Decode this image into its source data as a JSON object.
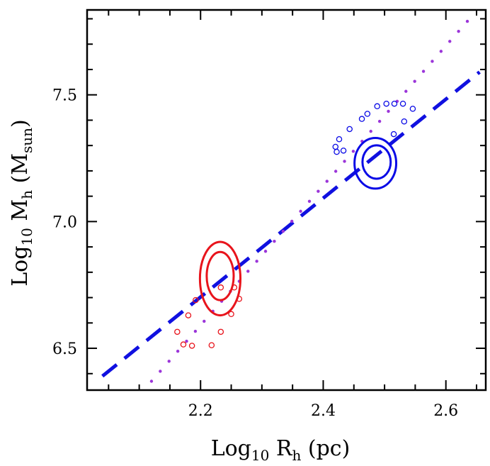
{
  "chart_data": {
    "type": "scatter",
    "title": "",
    "xlabel": {
      "base": "Log",
      "base_sub": "10",
      "symbol": " R",
      "symbol_sub": "h",
      "unit": " (pc)"
    },
    "ylabel": {
      "base": "Log",
      "base_sub": "10",
      "symbol": " M",
      "symbol_sub": "h",
      "unit_open": " (M",
      "unit_sub": "sun",
      "unit_close": ")"
    },
    "xlim": [
      2.015,
      2.665
    ],
    "ylim": [
      6.335,
      7.835
    ],
    "xticks": [
      2.2,
      2.4,
      2.6
    ],
    "xtick_labels": [
      "2.2",
      "2.4",
      "2.6"
    ],
    "yticks": [
      6.5,
      7.0,
      7.5
    ],
    "ytick_labels": [
      "6.5",
      "7.0",
      "7.5"
    ],
    "x_minor_step": 0.05,
    "y_minor_step": 0.1,
    "grid": false,
    "colors": {
      "red": "#e8141c",
      "blue": "#0a0ae6",
      "purple": "#9b35d9"
    },
    "series": [
      {
        "kind": "dashed-line",
        "color": "#1010e0",
        "points": [
          [
            2.04,
            6.39
          ],
          [
            2.655,
            7.59
          ]
        ]
      },
      {
        "kind": "dotted-line",
        "color": "#9b35d9",
        "points": [
          [
            2.12,
            6.37
          ],
          [
            2.635,
            7.79
          ]
        ]
      },
      {
        "kind": "contour",
        "color": "#e8141c",
        "levels": [
          {
            "cx": 2.232,
            "cy": 6.775,
            "rx": 0.033,
            "ry": 0.145
          },
          {
            "cx": 2.232,
            "cy": 6.785,
            "rx": 0.022,
            "ry": 0.095
          }
        ]
      },
      {
        "kind": "contour",
        "color": "#0a0ae6",
        "levels": [
          {
            "cx": 2.485,
            "cy": 7.23,
            "rx": 0.034,
            "ry": 0.1
          },
          {
            "cx": 2.487,
            "cy": 7.235,
            "rx": 0.023,
            "ry": 0.066
          }
        ]
      },
      {
        "kind": "open-circles",
        "color": "#e8141c",
        "points": [
          [
            2.162,
            6.565
          ],
          [
            2.172,
            6.515
          ],
          [
            2.18,
            6.63
          ],
          [
            2.186,
            6.51
          ],
          [
            2.192,
            6.69
          ],
          [
            2.218,
            6.512
          ],
          [
            2.233,
            6.565
          ],
          [
            2.233,
            6.74
          ],
          [
            2.25,
            6.635
          ],
          [
            2.255,
            6.74
          ],
          [
            2.263,
            6.695
          ]
        ]
      },
      {
        "kind": "open-circles",
        "color": "#0a0ae6",
        "points": [
          [
            2.42,
            7.295
          ],
          [
            2.422,
            7.275
          ],
          [
            2.426,
            7.325
          ],
          [
            2.433,
            7.28
          ],
          [
            2.443,
            7.365
          ],
          [
            2.463,
            7.405
          ],
          [
            2.472,
            7.425
          ],
          [
            2.488,
            7.455
          ],
          [
            2.503,
            7.465
          ],
          [
            2.516,
            7.465
          ],
          [
            2.53,
            7.465
          ],
          [
            2.532,
            7.395
          ],
          [
            2.546,
            7.445
          ],
          [
            2.515,
            7.345
          ]
        ]
      }
    ]
  }
}
